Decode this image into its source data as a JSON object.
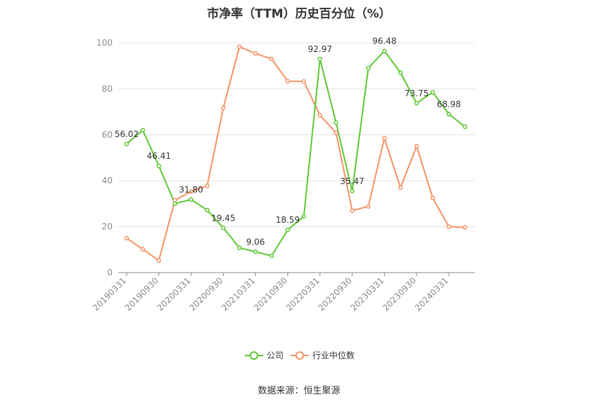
{
  "chart_data": {
    "type": "line",
    "title": "市净率（TTM）历史百分位（%）",
    "source": "数据来源：恒生聚源",
    "ylim": [
      0,
      100
    ],
    "yticks": [
      0,
      20,
      40,
      60,
      80,
      100
    ],
    "grid": true,
    "legend_position": "bottom",
    "x": [
      "20190331",
      "20190630",
      "20190930",
      "20191231",
      "20200331",
      "20200630",
      "20200930",
      "20201231",
      "20210331",
      "20210630",
      "20210930",
      "20211231",
      "20220331",
      "20220630",
      "20220930",
      "20221231",
      "20230331",
      "20230630",
      "20230930",
      "20231231",
      "20240331",
      "20240630"
    ],
    "xtick_labels": [
      "20190331",
      "20190930",
      "20200331",
      "20200930",
      "20210331",
      "20210930",
      "20220331",
      "20220930",
      "20230331",
      "20230930",
      "20240331"
    ],
    "series": [
      {
        "name": "公司",
        "color": "#5dc832",
        "values": [
          56.02,
          62.0,
          46.41,
          30.0,
          31.8,
          27.2,
          19.45,
          10.8,
          9.06,
          7.3,
          18.59,
          24.5,
          92.97,
          65.2,
          35.47,
          89.0,
          96.48,
          87.0,
          73.75,
          78.5,
          68.98,
          63.5
        ],
        "labels": [
          {
            "index": 0,
            "text": "56.02"
          },
          {
            "index": 2,
            "text": "46.41"
          },
          {
            "index": 4,
            "text": "31.80"
          },
          {
            "index": 6,
            "text": "19.45"
          },
          {
            "index": 8,
            "text": "9.06"
          },
          {
            "index": 10,
            "text": "18.59"
          },
          {
            "index": 12,
            "text": "92.97"
          },
          {
            "index": 14,
            "text": "35.47"
          },
          {
            "index": 16,
            "text": "96.48"
          },
          {
            "index": 18,
            "text": "73.75"
          },
          {
            "index": 20,
            "text": "68.98"
          }
        ]
      },
      {
        "name": "行业中位数",
        "color": "#f59164",
        "values": [
          15.0,
          10.2,
          5.3,
          31.5,
          35.3,
          37.8,
          71.7,
          98.3,
          95.4,
          93.0,
          83.3,
          83.2,
          68.5,
          60.8,
          27.0,
          28.8,
          58.5,
          37.0,
          55.0,
          32.5,
          20.0,
          19.7
        ],
        "labels": []
      }
    ]
  }
}
